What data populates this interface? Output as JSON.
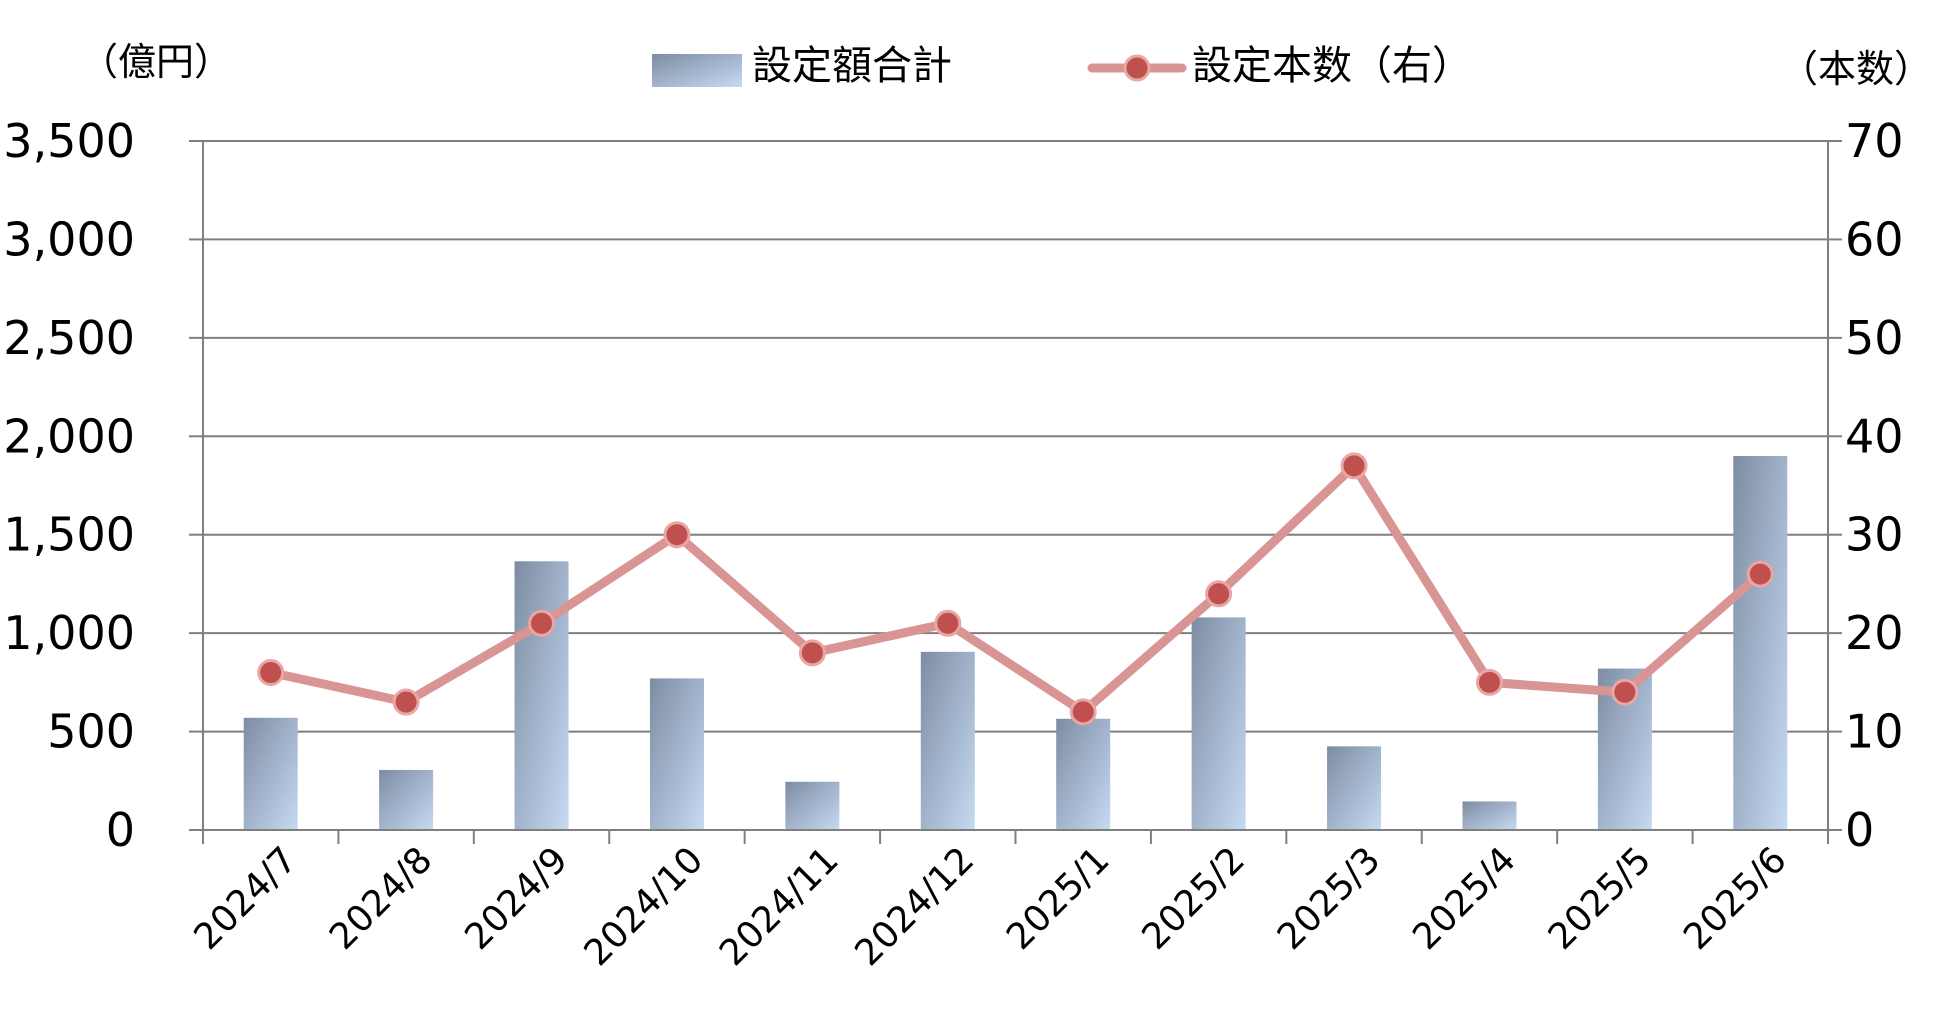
{
  "chart_data": {
    "type": "bar",
    "categories": [
      "2024/7",
      "2024/8",
      "2024/9",
      "2024/10",
      "2024/11",
      "2024/12",
      "2025/1",
      "2025/2",
      "2025/3",
      "2025/4",
      "2025/5",
      "2025/6"
    ],
    "series": [
      {
        "name": "設定額合計",
        "type": "bar",
        "axis": "left",
        "values": [
          570,
          305,
          1365,
          770,
          245,
          905,
          565,
          1080,
          425,
          145,
          820,
          1900
        ]
      },
      {
        "name": "設定本数（右）",
        "type": "line",
        "axis": "right",
        "values": [
          16,
          13,
          21,
          30,
          18,
          21,
          12,
          24,
          37,
          15,
          14,
          26
        ]
      }
    ],
    "left_axis": {
      "unit_label": "（億円）",
      "ylim": [
        0,
        3500
      ],
      "ticks": [
        "0",
        "500",
        "1,000",
        "1,500",
        "2,000",
        "2,500",
        "3,000",
        "3,500"
      ]
    },
    "right_axis": {
      "unit_label": "（本数）",
      "ylim": [
        0,
        70
      ],
      "ticks": [
        "0",
        "10",
        "20",
        "30",
        "40",
        "50",
        "60",
        "70"
      ]
    },
    "grid": true,
    "legend_position": "top-center",
    "colors": {
      "bar_light": "#c3d7ef",
      "bar_dark": "#7d8ca3",
      "line": "#d99594",
      "marker_fill": "#c0504d",
      "grid": "#7f7f7f"
    }
  }
}
